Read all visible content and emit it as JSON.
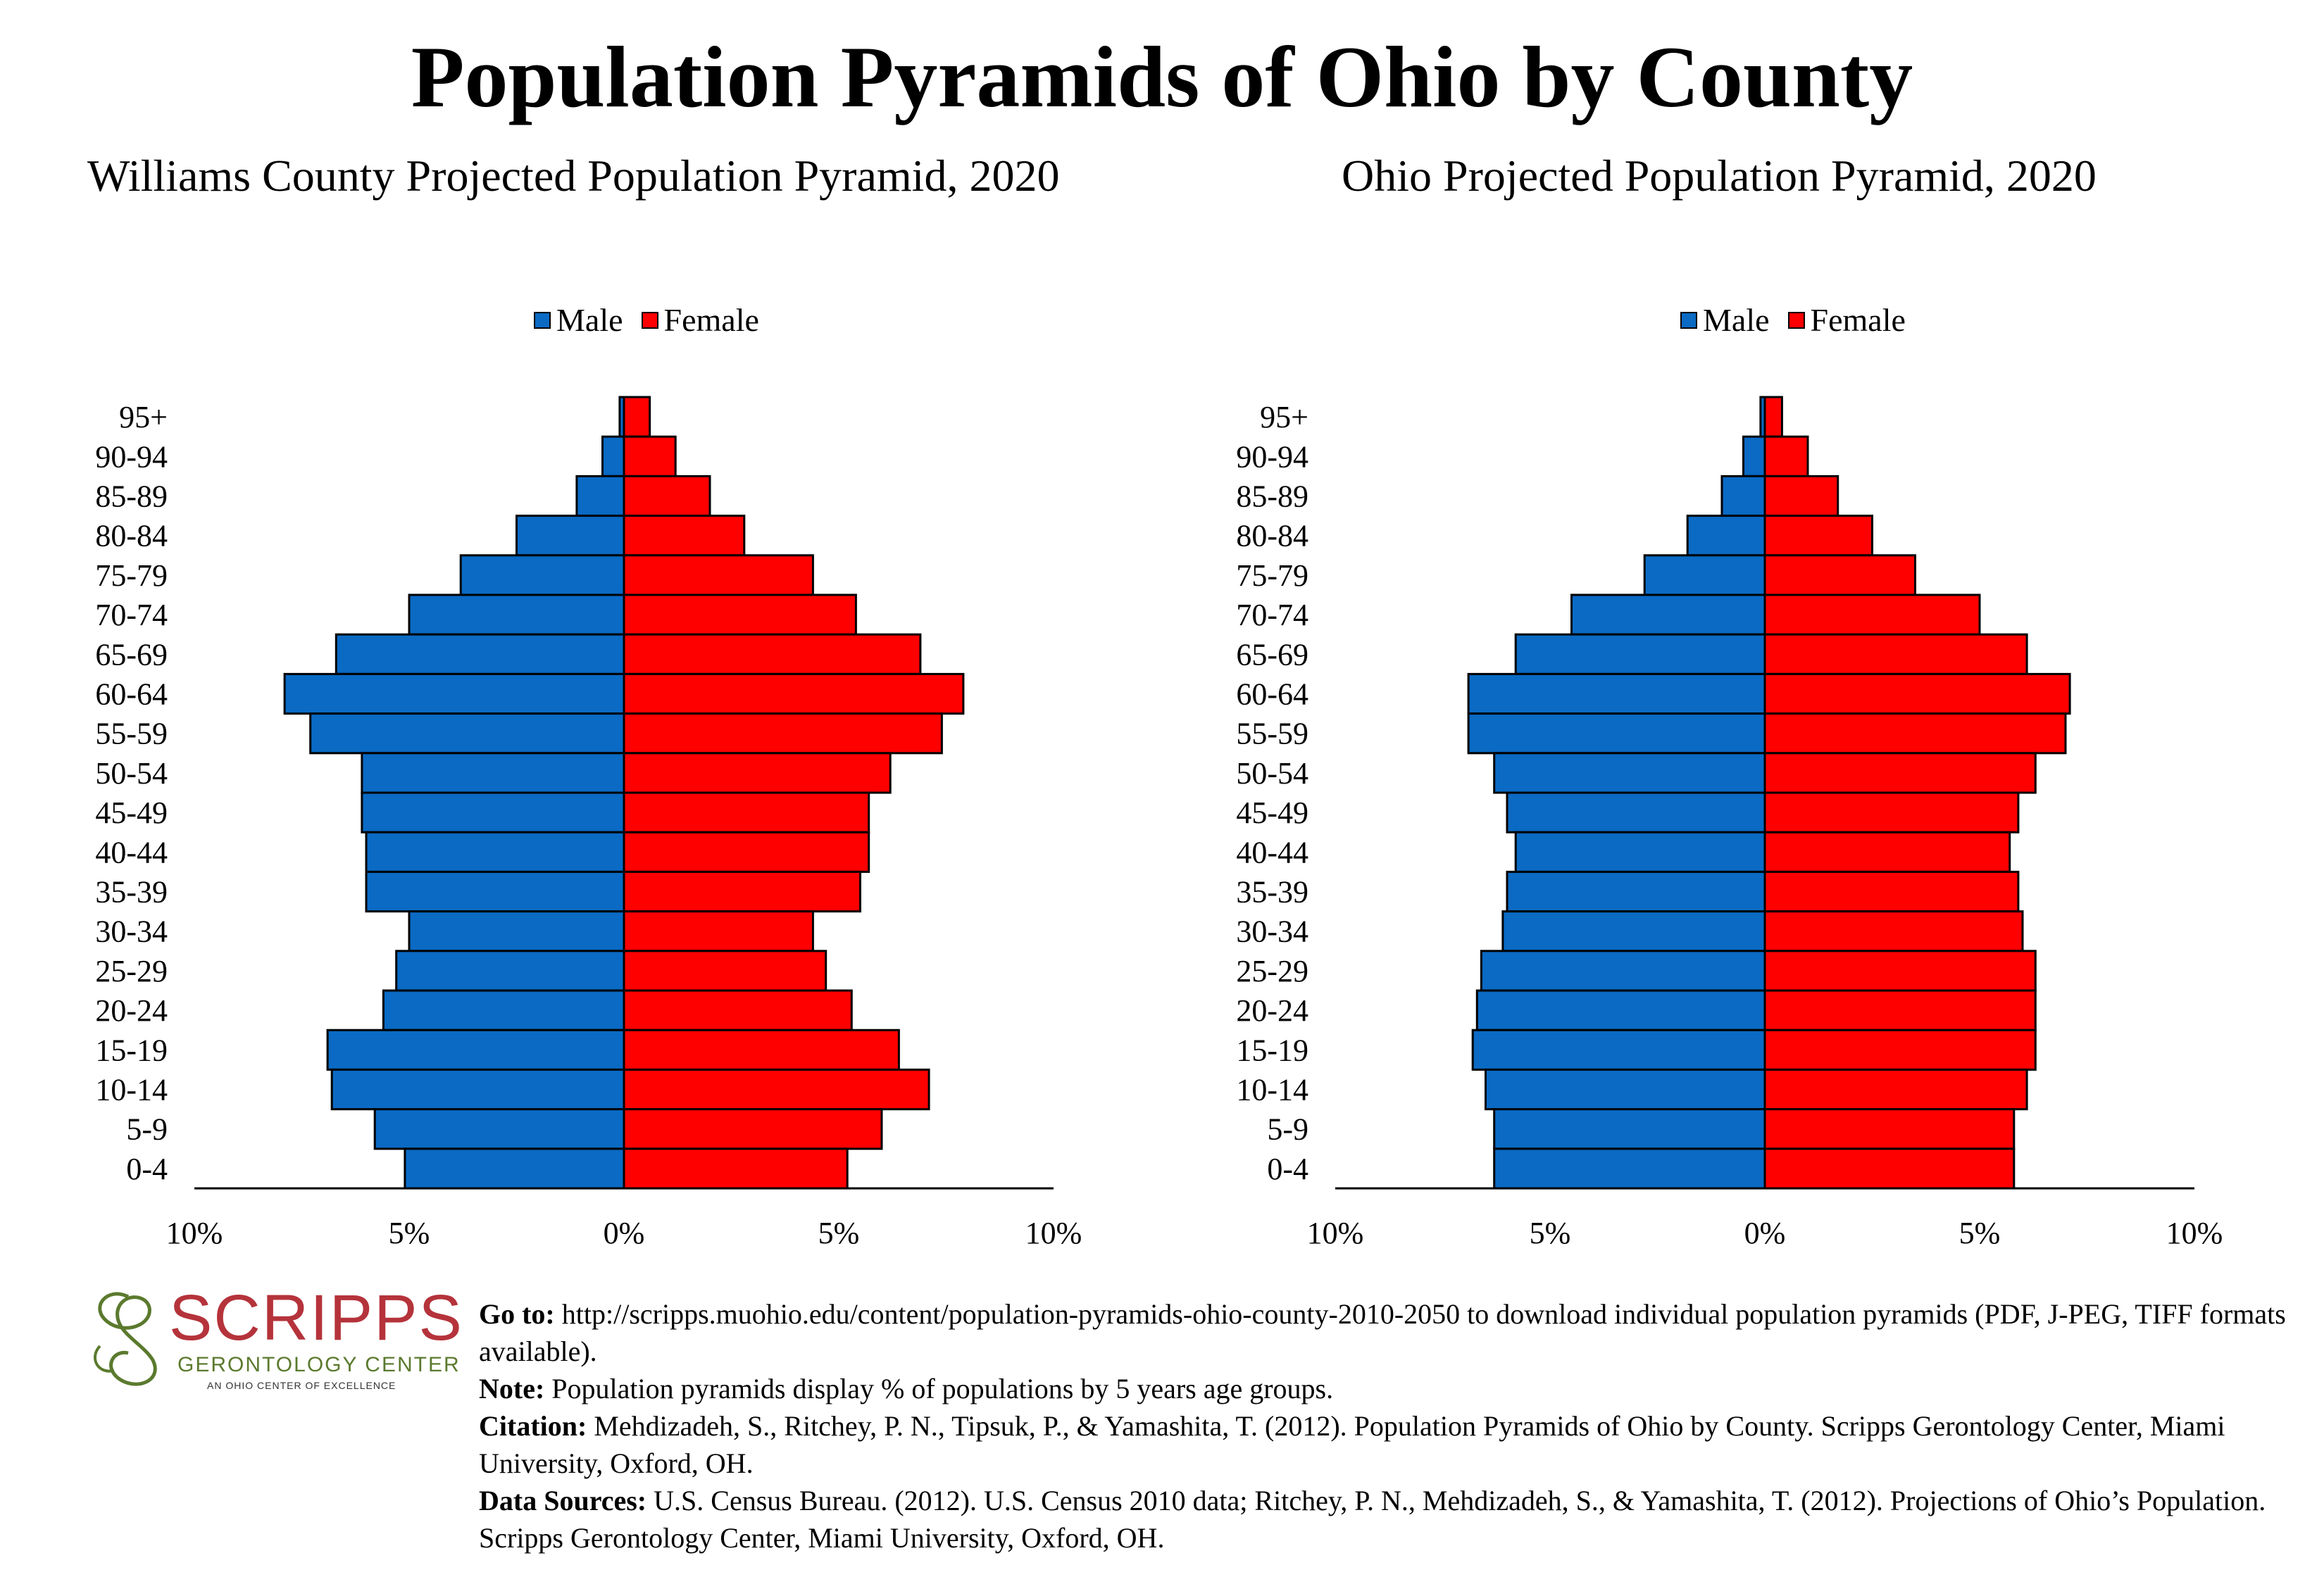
{
  "title": "Population Pyramids of Ohio by County",
  "legend": {
    "male": "Male",
    "female": "Female"
  },
  "colors": {
    "male": "#0a6ac4",
    "female": "#ff0000",
    "logo_red": "#b5333b",
    "logo_green": "#5b7a2e"
  },
  "logo": {
    "name": "SCRIPPS",
    "subtitle": "GERONTOLOGY CENTER",
    "tagline": "AN OHIO CENTER OF EXCELLENCE"
  },
  "notes": {
    "goto_label": "Go to:",
    "goto_text": "http://scripps.muohio.edu/content/population-pyramids-ohio-county-2010-2050 to download individual population pyramids (PDF, J-PEG, TIFF formats available).",
    "note_label": "Note:",
    "note_text": "Population pyramids display % of populations by 5 years age groups.",
    "citation_label": "Citation:",
    "citation_text": "Mehdizadeh, S., Ritchey, P. N., Tipsuk, P., & Yamashita, T. (2012). Population Pyramids of Ohio by County. Scripps Gerontology Center, Miami University, Oxford, OH.",
    "sources_label": "Data Sources:",
    "sources_text": "U.S. Census Bureau. (2012). U.S. Census 2010 data; Ritchey, P. N., Mehdizadeh, S., & Yamashita, T. (2012). Projections of Ohio’s Population. Scripps Gerontology Center, Miami University, Oxford, OH."
  },
  "chart_data": [
    {
      "type": "bar",
      "orientation": "horizontal-pyramid",
      "title": "Williams County Projected Population Pyramid, 2020",
      "categories": [
        "95+",
        "90-94",
        "85-89",
        "80-84",
        "75-79",
        "70-74",
        "65-69",
        "60-64",
        "55-59",
        "50-54",
        "45-49",
        "40-44",
        "35-39",
        "30-34",
        "25-29",
        "20-24",
        "15-19",
        "10-14",
        "5-9",
        "0-4"
      ],
      "series": [
        {
          "name": "Male",
          "values": [
            0.1,
            0.5,
            1.1,
            2.5,
            3.8,
            5.0,
            6.7,
            7.9,
            7.3,
            6.1,
            6.1,
            6.0,
            6.0,
            5.0,
            5.3,
            5.6,
            6.9,
            6.8,
            5.8,
            5.1
          ]
        },
        {
          "name": "Female",
          "values": [
            0.6,
            1.2,
            2.0,
            2.8,
            4.4,
            5.4,
            6.9,
            7.9,
            7.4,
            6.2,
            5.7,
            5.7,
            5.5,
            4.4,
            4.7,
            5.3,
            6.4,
            7.1,
            6.0,
            5.2
          ]
        }
      ],
      "xlim": [
        -10,
        10
      ],
      "xticks": [
        "10%",
        "5%",
        "0%",
        "5%",
        "10%"
      ],
      "legend_position": "top-center",
      "grid": false
    },
    {
      "type": "bar",
      "orientation": "horizontal-pyramid",
      "title": "Ohio Projected Population Pyramid, 2020",
      "categories": [
        "95+",
        "90-94",
        "85-89",
        "80-84",
        "75-79",
        "70-74",
        "65-69",
        "60-64",
        "55-59",
        "50-54",
        "45-49",
        "40-44",
        "35-39",
        "30-34",
        "25-29",
        "20-24",
        "15-19",
        "10-14",
        "5-9",
        "0-4"
      ],
      "series": [
        {
          "name": "Male",
          "values": [
            0.1,
            0.5,
            1.0,
            1.8,
            2.8,
            4.5,
            5.8,
            6.9,
            6.9,
            6.3,
            6.0,
            5.8,
            6.0,
            6.1,
            6.6,
            6.7,
            6.8,
            6.5,
            6.3,
            6.3
          ]
        },
        {
          "name": "Female",
          "values": [
            0.4,
            1.0,
            1.7,
            2.5,
            3.5,
            5.0,
            6.1,
            7.1,
            7.0,
            6.3,
            5.9,
            5.7,
            5.9,
            6.0,
            6.3,
            6.3,
            6.3,
            6.1,
            5.8,
            5.8
          ]
        }
      ],
      "xlim": [
        -10,
        10
      ],
      "xticks": [
        "10%",
        "5%",
        "0%",
        "5%",
        "10%"
      ],
      "legend_position": "top-center",
      "grid": false
    }
  ]
}
